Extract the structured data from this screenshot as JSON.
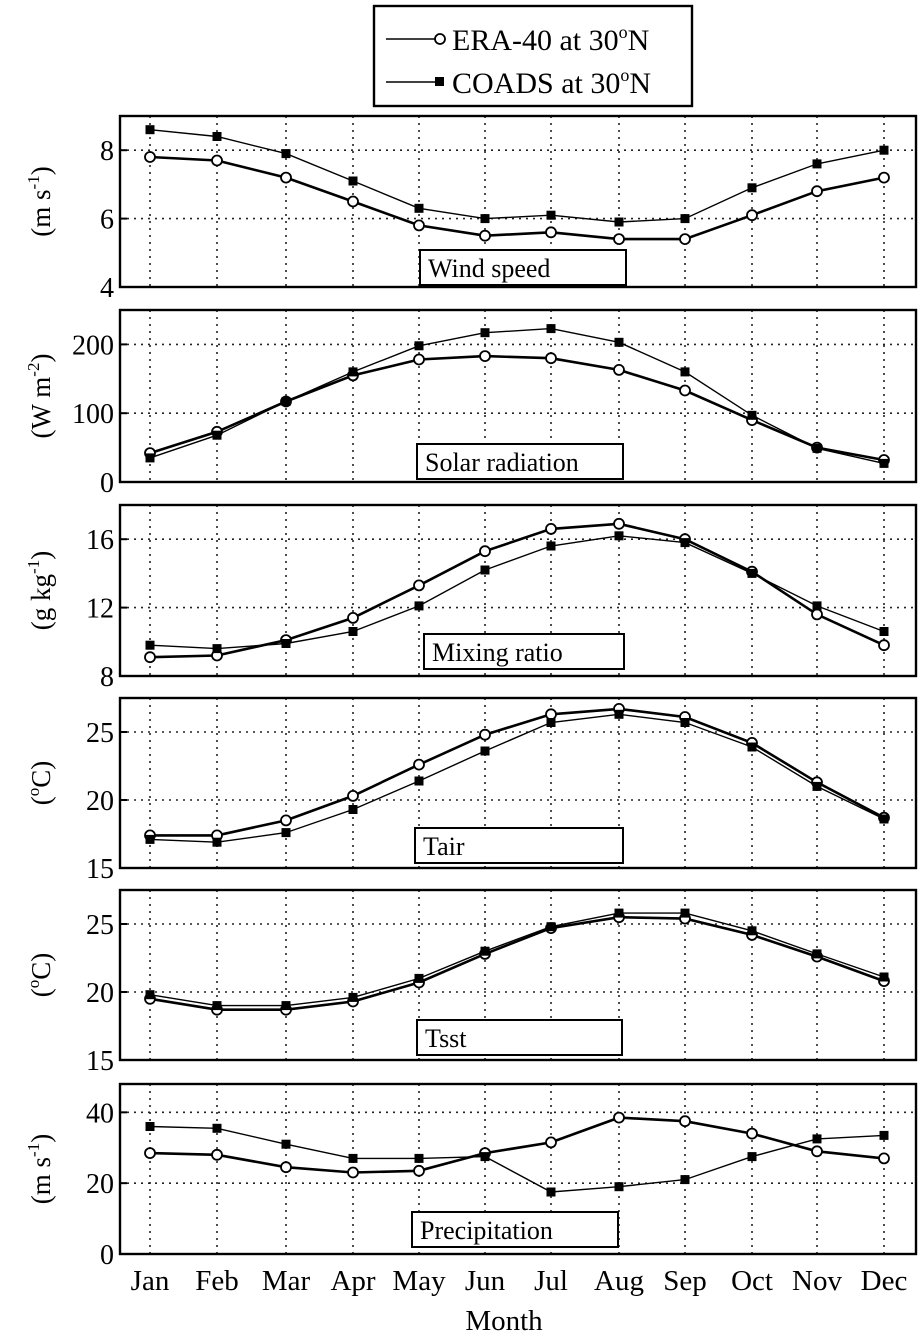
{
  "chart_data": {
    "type": "line",
    "months": [
      "Jan",
      "Feb",
      "Mar",
      "Apr",
      "May",
      "Jun",
      "Jul",
      "Aug",
      "Sep",
      "Oct",
      "Nov",
      "Dec"
    ],
    "xlabel": "Month",
    "legend": {
      "position": "top-center",
      "entries": [
        {
          "label": "ERA-40 at 30",
          "sup": "o",
          "suffix": "N",
          "marker": "open-circle"
        },
        {
          "label": "COADS at 30",
          "sup": "o",
          "suffix": "N",
          "marker": "filled-square"
        }
      ]
    },
    "grid": true,
    "panels": [
      {
        "label": "Wind speed",
        "ylabel": {
          "base": "(m s",
          "sup": "-1",
          "close": ")"
        },
        "ylim": [
          4,
          9
        ],
        "yticks": [
          4,
          6,
          8
        ],
        "series": [
          {
            "name": "ERA-40 at 30°N",
            "values": [
              7.8,
              7.7,
              7.2,
              6.5,
              5.8,
              5.5,
              5.6,
              5.4,
              5.4,
              6.1,
              6.8,
              7.2
            ]
          },
          {
            "name": "COADS at 30°N",
            "values": [
              8.6,
              8.4,
              7.9,
              7.1,
              6.3,
              6.0,
              6.1,
              5.9,
              6.0,
              6.9,
              7.6,
              8.0
            ]
          }
        ]
      },
      {
        "label": "Solar radiation",
        "ylabel": {
          "base": "(W m",
          "sup": "-2",
          "close": ")"
        },
        "ylim": [
          0,
          250
        ],
        "yticks": [
          0,
          100,
          200
        ],
        "series": [
          {
            "name": "ERA-40 at 30°N",
            "values": [
              42,
              73,
              117,
              155,
              178,
              183,
              180,
              163,
              133,
              90,
              50,
              32
            ]
          },
          {
            "name": "COADS at 30°N",
            "values": [
              35,
              68,
              117,
              160,
              198,
              217,
              223,
              203,
              160,
              97,
              49,
              27
            ]
          }
        ]
      },
      {
        "label": "Mixing ratio",
        "ylabel": {
          "base": "(g kg",
          "sup": "-1",
          "close": ")"
        },
        "ylim": [
          8,
          18
        ],
        "yticks": [
          8,
          12,
          16
        ],
        "series": [
          {
            "name": "ERA-40 at 30°N",
            "values": [
              9.1,
              9.2,
              10.1,
              11.4,
              13.3,
              15.3,
              16.6,
              16.9,
              16.0,
              14.1,
              11.6,
              9.8
            ]
          },
          {
            "name": "COADS at 30°N",
            "values": [
              9.8,
              9.6,
              9.9,
              10.6,
              12.1,
              14.2,
              15.6,
              16.2,
              15.8,
              14.0,
              12.1,
              10.6
            ]
          }
        ]
      },
      {
        "label": "Tair",
        "ylabel": {
          "base": "(",
          "sup": "o",
          "close": "C)"
        },
        "ylim": [
          15,
          27.5
        ],
        "yticks": [
          15,
          20,
          25
        ],
        "series": [
          {
            "name": "ERA-40 at 30°N",
            "values": [
              17.4,
              17.4,
              18.5,
              20.3,
              22.6,
              24.8,
              26.3,
              26.7,
              26.1,
              24.2,
              21.3,
              18.7
            ]
          },
          {
            "name": "COADS at 30°N",
            "values": [
              17.1,
              16.9,
              17.6,
              19.3,
              21.4,
              23.6,
              25.7,
              26.3,
              25.7,
              23.9,
              21.0,
              18.6
            ]
          }
        ]
      },
      {
        "label": "Tsst",
        "ylabel": {
          "base": "(",
          "sup": "o",
          "close": "C)"
        },
        "ylim": [
          15,
          27.5
        ],
        "yticks": [
          15,
          20,
          25
        ],
        "series": [
          {
            "name": "ERA-40 at 30°N",
            "values": [
              19.5,
              18.7,
              18.7,
              19.3,
              20.7,
              22.8,
              24.7,
              25.5,
              25.4,
              24.2,
              22.6,
              20.8
            ]
          },
          {
            "name": "COADS at 30°N",
            "values": [
              19.8,
              19.0,
              19.0,
              19.6,
              21.0,
              23.0,
              24.8,
              25.8,
              25.8,
              24.5,
              22.8,
              21.1
            ]
          }
        ]
      },
      {
        "label": "Precipitation",
        "ylabel": {
          "base": "(m s",
          "sup": "-1",
          "close": ")"
        },
        "ylim": [
          0,
          48
        ],
        "yticks": [
          0,
          20,
          40
        ],
        "series": [
          {
            "name": "ERA-40 at 30°N",
            "values": [
              28.5,
              28.0,
              24.5,
              23.0,
              23.5,
              28.5,
              31.5,
              38.5,
              37.5,
              34.0,
              29.0,
              27.0
            ]
          },
          {
            "name": "COADS at 30°N",
            "values": [
              36.0,
              35.5,
              31.0,
              27.0,
              27.0,
              27.5,
              17.5,
              19.0,
              21.0,
              27.5,
              32.5,
              33.5
            ]
          }
        ]
      }
    ]
  }
}
